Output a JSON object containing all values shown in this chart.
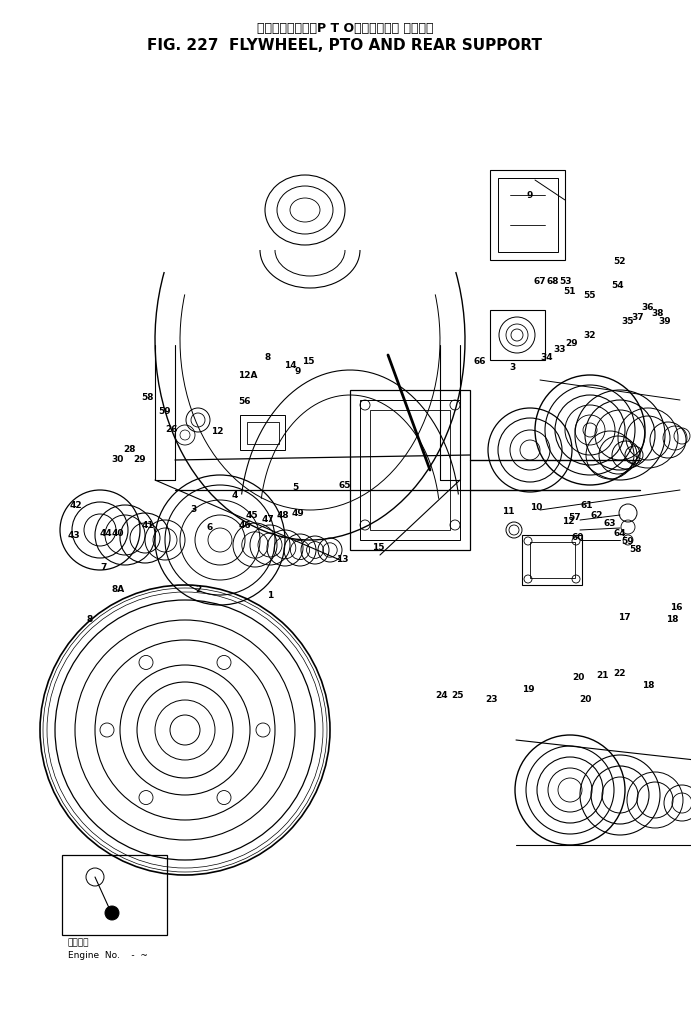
{
  "title_line1": "フライホイール，P T Oおよびリヤー サポート",
  "title_line2": "FIG. 227  FLYWHEEL, PTO AND REAR SUPPORT",
  "engine_label1": "適用番号",
  "engine_label2": "Engine  No.    -  ~",
  "bg_color": "#ffffff",
  "lc": "#000000",
  "fig_width": 6.91,
  "fig_height": 10.11,
  "dpi": 100
}
